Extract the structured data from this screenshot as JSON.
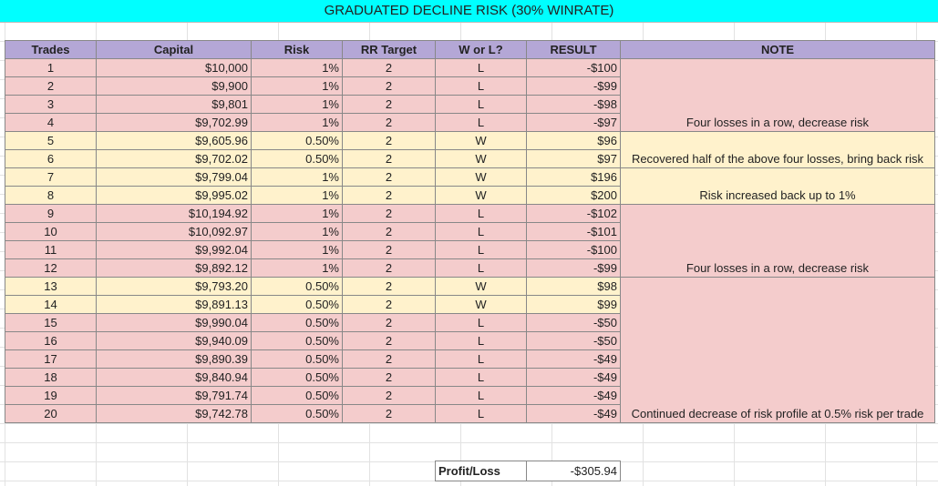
{
  "title": "GRADUATED DECLINE RISK (30% WINRATE)",
  "table": {
    "headers": [
      "Trades",
      "Capital",
      "Risk",
      "RR Target",
      "W or L?",
      "RESULT",
      "NOTE"
    ],
    "rows": [
      {
        "cells": [
          1,
          "$10,000",
          "1%",
          2,
          "L",
          "-$100"
        ]
      },
      {
        "cells": [
          2,
          "$9,900",
          "1%",
          2,
          "L",
          "-$99"
        ]
      },
      {
        "cells": [
          3,
          "$9,801",
          "1%",
          2,
          "L",
          "-$98"
        ]
      },
      {
        "cells": [
          4,
          "$9,702.99",
          "1%",
          2,
          "L",
          "-$97"
        ],
        "note": "Four losses in a row, decrease risk"
      },
      {
        "cells": [
          5,
          "$9,605.96",
          "0.50%",
          2,
          "W",
          "$96"
        ]
      },
      {
        "cells": [
          6,
          "$9,702.02",
          "0.50%",
          2,
          "W",
          "$97"
        ],
        "note": "Recovered half of the above four losses, bring back risk"
      },
      {
        "cells": [
          7,
          "$9,799.04",
          "1%",
          2,
          "W",
          "$196"
        ]
      },
      {
        "cells": [
          8,
          "$9,995.02",
          "1%",
          2,
          "W",
          "$200"
        ],
        "note": "Risk increased back up to 1%"
      },
      {
        "cells": [
          9,
          "$10,194.92",
          "1%",
          2,
          "L",
          "-$102"
        ]
      },
      {
        "cells": [
          10,
          "$10,092.97",
          "1%",
          2,
          "L",
          "-$101"
        ]
      },
      {
        "cells": [
          11,
          "$9,992.04",
          "1%",
          2,
          "L",
          "-$100"
        ]
      },
      {
        "cells": [
          12,
          "$9,892.12",
          "1%",
          2,
          "L",
          "-$99"
        ],
        "note": "Four losses in a row, decrease risk"
      },
      {
        "cells": [
          13,
          "$9,793.20",
          "0.50%",
          2,
          "W",
          "$98"
        ]
      },
      {
        "cells": [
          14,
          "$9,891.13",
          "0.50%",
          2,
          "W",
          "$99"
        ]
      },
      {
        "cells": [
          15,
          "$9,990.04",
          "0.50%",
          2,
          "L",
          "-$50"
        ]
      },
      {
        "cells": [
          16,
          "$9,940.09",
          "0.50%",
          2,
          "L",
          "-$50"
        ]
      },
      {
        "cells": [
          17,
          "$9,890.39",
          "0.50%",
          2,
          "L",
          "-$49"
        ]
      },
      {
        "cells": [
          18,
          "$9,840.94",
          "0.50%",
          2,
          "L",
          "-$49"
        ]
      },
      {
        "cells": [
          19,
          "$9,791.74",
          "0.50%",
          2,
          "L",
          "-$49"
        ]
      },
      {
        "cells": [
          20,
          "$9,742.78",
          "0.50%",
          2,
          "L",
          "-$49"
        ],
        "note": "Continued decrease of risk profile at 0.5% risk per trade"
      }
    ]
  },
  "summary": {
    "label": "Profit/Loss",
    "value": "-$305.94"
  }
}
